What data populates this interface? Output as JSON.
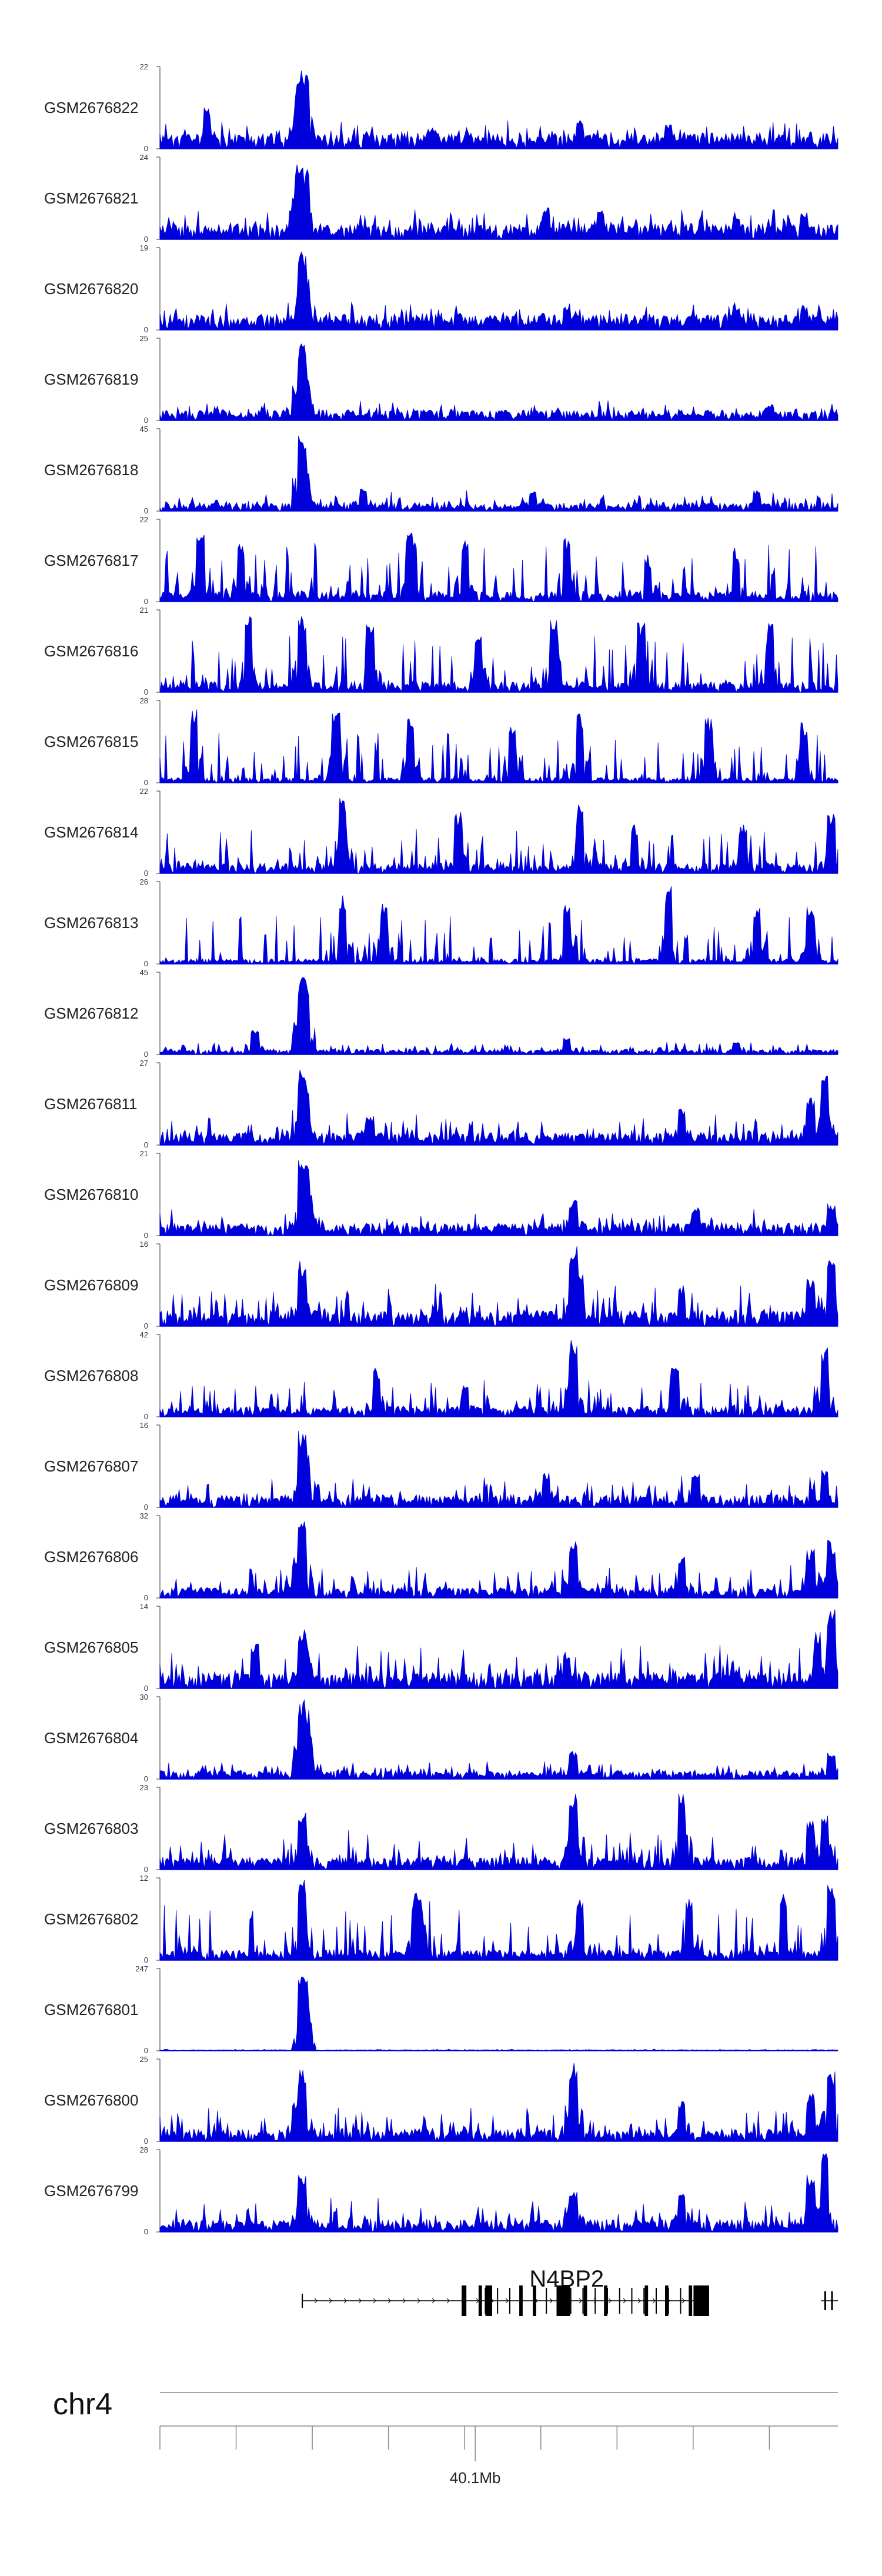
{
  "chart_data": {
    "type": "area",
    "track_color": "#0000dd",
    "axis_color": "#777777",
    "tracks": [
      {
        "name": "GSM2676822",
        "ymax": 22,
        "ymin": 0,
        "peaks": [
          [
            0.07,
            0.5
          ],
          [
            0.21,
            0.95
          ],
          [
            0.205,
            0.8
          ],
          [
            0.215,
            0.9
          ],
          [
            0.62,
            0.35
          ],
          [
            0.75,
            0.3
          ],
          [
            0.4,
            0.25
          ]
        ],
        "seed": 11,
        "base": 0.15,
        "noise": 0.18
      },
      {
        "name": "GSM2676821",
        "ymax": 24,
        "ymin": 0,
        "peaks": [
          [
            0.205,
            0.95
          ],
          [
            0.215,
            0.85
          ],
          [
            0.2,
            0.6
          ],
          [
            0.57,
            0.4
          ],
          [
            0.65,
            0.35
          ],
          [
            0.85,
            0.3
          ],
          [
            0.95,
            0.35
          ]
        ],
        "seed": 12,
        "base": 0.15,
        "noise": 0.2
      },
      {
        "name": "GSM2676820",
        "ymax": 19,
        "ymin": 0,
        "peaks": [
          [
            0.21,
            0.95
          ],
          [
            0.215,
            0.7
          ],
          [
            0.6,
            0.3
          ],
          [
            0.85,
            0.3
          ],
          [
            0.95,
            0.3
          ]
        ],
        "seed": 13,
        "base": 0.15,
        "noise": 0.18
      },
      {
        "name": "GSM2676819",
        "ymax": 25,
        "ymin": 0,
        "peaks": [
          [
            0.21,
            0.95
          ],
          [
            0.215,
            0.55
          ],
          [
            0.2,
            0.4
          ],
          [
            0.9,
            0.2
          ]
        ],
        "seed": 14,
        "base": 0.1,
        "noise": 0.12
      },
      {
        "name": "GSM2676818",
        "ymax": 45,
        "ymin": 0,
        "peaks": [
          [
            0.21,
            0.95
          ],
          [
            0.215,
            0.6
          ],
          [
            0.3,
            0.3
          ],
          [
            0.55,
            0.25
          ],
          [
            0.88,
            0.25
          ]
        ],
        "seed": 15,
        "base": 0.08,
        "noise": 0.15
      },
      {
        "name": "GSM2676817",
        "ymax": 22,
        "ymin": 0,
        "peaks": [
          [
            0.06,
            0.95
          ],
          [
            0.12,
            0.7
          ],
          [
            0.37,
            0.85
          ],
          [
            0.45,
            0.75
          ],
          [
            0.6,
            0.8
          ],
          [
            0.72,
            0.5
          ],
          [
            0.85,
            0.6
          ]
        ],
        "seed": 16,
        "base": 0.1,
        "noise": 0.6
      },
      {
        "name": "GSM2676816",
        "ymax": 21,
        "ymin": 0,
        "peaks": [
          [
            0.13,
            0.95
          ],
          [
            0.21,
            0.95
          ],
          [
            0.31,
            0.85
          ],
          [
            0.47,
            0.7
          ],
          [
            0.58,
            0.9
          ],
          [
            0.71,
            0.85
          ],
          [
            0.9,
            0.85
          ]
        ],
        "seed": 17,
        "base": 0.1,
        "noise": 0.6
      },
      {
        "name": "GSM2676815",
        "ymax": 28,
        "ymin": 0,
        "peaks": [
          [
            0.05,
            0.9
          ],
          [
            0.26,
            0.95
          ],
          [
            0.37,
            0.8
          ],
          [
            0.52,
            0.75
          ],
          [
            0.62,
            0.85
          ],
          [
            0.81,
            0.8
          ],
          [
            0.95,
            0.75
          ]
        ],
        "seed": 18,
        "base": 0.05,
        "noise": 0.55
      },
      {
        "name": "GSM2676814",
        "ymax": 22,
        "ymin": 0,
        "peaks": [
          [
            0.27,
            0.95
          ],
          [
            0.44,
            0.75
          ],
          [
            0.62,
            0.9
          ],
          [
            0.7,
            0.6
          ],
          [
            0.86,
            0.6
          ],
          [
            0.99,
            0.75
          ]
        ],
        "seed": 19,
        "base": 0.1,
        "noise": 0.5
      },
      {
        "name": "GSM2676813",
        "ymax": 26,
        "ymin": 0,
        "peaks": [
          [
            0.27,
            0.85
          ],
          [
            0.33,
            0.75
          ],
          [
            0.6,
            0.8
          ],
          [
            0.75,
            0.95
          ],
          [
            0.88,
            0.7
          ],
          [
            0.96,
            0.75
          ]
        ],
        "seed": 20,
        "base": 0.05,
        "noise": 0.55
      },
      {
        "name": "GSM2676812",
        "ymax": 45,
        "ymin": 0,
        "peaks": [
          [
            0.21,
            0.98
          ],
          [
            0.215,
            0.8
          ],
          [
            0.14,
            0.3
          ],
          [
            0.6,
            0.2
          ],
          [
            0.85,
            0.15
          ]
        ],
        "seed": 21,
        "base": 0.05,
        "noise": 0.1
      },
      {
        "name": "GSM2676811",
        "ymax": 27,
        "ymin": 0,
        "peaks": [
          [
            0.21,
            0.95
          ],
          [
            0.215,
            0.7
          ],
          [
            0.31,
            0.35
          ],
          [
            0.77,
            0.45
          ],
          [
            0.98,
            0.9
          ],
          [
            0.96,
            0.6
          ]
        ],
        "seed": 22,
        "base": 0.12,
        "noise": 0.25
      },
      {
        "name": "GSM2676810",
        "ymax": 21,
        "ymin": 0,
        "peaks": [
          [
            0.21,
            0.95
          ],
          [
            0.215,
            0.85
          ],
          [
            0.22,
            0.6
          ],
          [
            0.61,
            0.45
          ],
          [
            0.79,
            0.35
          ],
          [
            0.99,
            0.4
          ]
        ],
        "seed": 23,
        "base": 0.12,
        "noise": 0.2
      },
      {
        "name": "GSM2676809",
        "ymax": 16,
        "ymin": 0,
        "peaks": [
          [
            0.21,
            0.8
          ],
          [
            0.61,
            0.98
          ],
          [
            0.62,
            0.7
          ],
          [
            0.77,
            0.5
          ],
          [
            0.99,
            0.8
          ],
          [
            0.96,
            0.6
          ]
        ],
        "seed": 24,
        "base": 0.15,
        "noise": 0.35
      },
      {
        "name": "GSM2676808",
        "ymax": 42,
        "ymin": 0,
        "peaks": [
          [
            0.32,
            0.6
          ],
          [
            0.61,
            0.98
          ],
          [
            0.76,
            0.6
          ],
          [
            0.98,
            0.85
          ],
          [
            0.45,
            0.4
          ]
        ],
        "seed": 25,
        "base": 0.1,
        "noise": 0.35
      },
      {
        "name": "GSM2676807",
        "ymax": 16,
        "ymin": 0,
        "peaks": [
          [
            0.21,
            0.95
          ],
          [
            0.215,
            0.75
          ],
          [
            0.57,
            0.45
          ],
          [
            0.79,
            0.4
          ],
          [
            0.98,
            0.45
          ]
        ],
        "seed": 26,
        "base": 0.12,
        "noise": 0.25
      },
      {
        "name": "GSM2676806",
        "ymax": 32,
        "ymin": 0,
        "peaks": [
          [
            0.21,
            0.95
          ],
          [
            0.2,
            0.5
          ],
          [
            0.61,
            0.7
          ],
          [
            0.77,
            0.5
          ],
          [
            0.96,
            0.6
          ],
          [
            0.99,
            0.7
          ]
        ],
        "seed": 27,
        "base": 0.1,
        "noise": 0.3
      },
      {
        "name": "GSM2676805",
        "ymax": 14,
        "ymin": 0,
        "peaks": [
          [
            0.21,
            0.75
          ],
          [
            0.14,
            0.55
          ],
          [
            0.6,
            0.45
          ],
          [
            0.99,
            0.98
          ],
          [
            0.97,
            0.7
          ]
        ],
        "seed": 28,
        "base": 0.15,
        "noise": 0.35
      },
      {
        "name": "GSM2676804",
        "ymax": 30,
        "ymin": 0,
        "peaks": [
          [
            0.21,
            0.98
          ],
          [
            0.215,
            0.85
          ],
          [
            0.22,
            0.55
          ],
          [
            0.61,
            0.35
          ],
          [
            0.99,
            0.35
          ]
        ],
        "seed": 29,
        "base": 0.08,
        "noise": 0.15
      },
      {
        "name": "GSM2676803",
        "ymax": 23,
        "ymin": 0,
        "peaks": [
          [
            0.21,
            0.7
          ],
          [
            0.61,
            0.95
          ],
          [
            0.77,
            0.98
          ],
          [
            0.96,
            0.6
          ],
          [
            0.98,
            0.7
          ]
        ],
        "seed": 30,
        "base": 0.12,
        "noise": 0.35
      },
      {
        "name": "GSM2676802",
        "ymax": 12,
        "ymin": 0,
        "peaks": [
          [
            0.21,
            0.98
          ],
          [
            0.38,
            0.85
          ],
          [
            0.62,
            0.8
          ],
          [
            0.78,
            0.75
          ],
          [
            0.92,
            0.8
          ],
          [
            0.99,
            0.95
          ]
        ],
        "seed": 31,
        "base": 0.1,
        "noise": 0.6
      },
      {
        "name": "GSM2676801",
        "ymax": 247,
        "ymin": 0,
        "peaks": [
          [
            0.21,
            0.98
          ],
          [
            0.212,
            0.9
          ],
          [
            0.215,
            0.7
          ]
        ],
        "seed": 32,
        "base": 0.01,
        "noise": 0.01
      },
      {
        "name": "GSM2676800",
        "ymax": 25,
        "ymin": 0,
        "peaks": [
          [
            0.21,
            0.9
          ],
          [
            0.2,
            0.5
          ],
          [
            0.61,
            0.98
          ],
          [
            0.77,
            0.5
          ],
          [
            0.99,
            0.85
          ],
          [
            0.96,
            0.6
          ]
        ],
        "seed": 33,
        "base": 0.12,
        "noise": 0.3
      },
      {
        "name": "GSM2676799",
        "ymax": 28,
        "ymin": 0,
        "peaks": [
          [
            0.21,
            0.75
          ],
          [
            0.61,
            0.5
          ],
          [
            0.77,
            0.5
          ],
          [
            0.98,
            0.98
          ],
          [
            0.96,
            0.7
          ]
        ],
        "seed": 34,
        "base": 0.12,
        "noise": 0.3
      }
    ],
    "gene": {
      "name": "N4BP2",
      "start": 0.21,
      "end": 0.81,
      "strand": "+",
      "exons": [
        [
          0.445,
          0.452
        ],
        [
          0.47,
          0.475
        ],
        [
          0.48,
          0.49
        ],
        [
          0.53,
          0.535
        ],
        [
          0.55,
          0.555
        ],
        [
          0.585,
          0.605
        ],
        [
          0.625,
          0.63
        ],
        [
          0.655,
          0.66
        ],
        [
          0.715,
          0.72
        ],
        [
          0.745,
          0.75
        ],
        [
          0.78,
          0.785
        ],
        [
          0.787,
          0.81
        ]
      ],
      "extra_exons": [
        [
          0.98,
          0.983
        ],
        [
          0.99,
          0.993
        ]
      ]
    },
    "chromosome": "chr4",
    "position_label": "40.1Mb",
    "position_frac": 0.465
  }
}
